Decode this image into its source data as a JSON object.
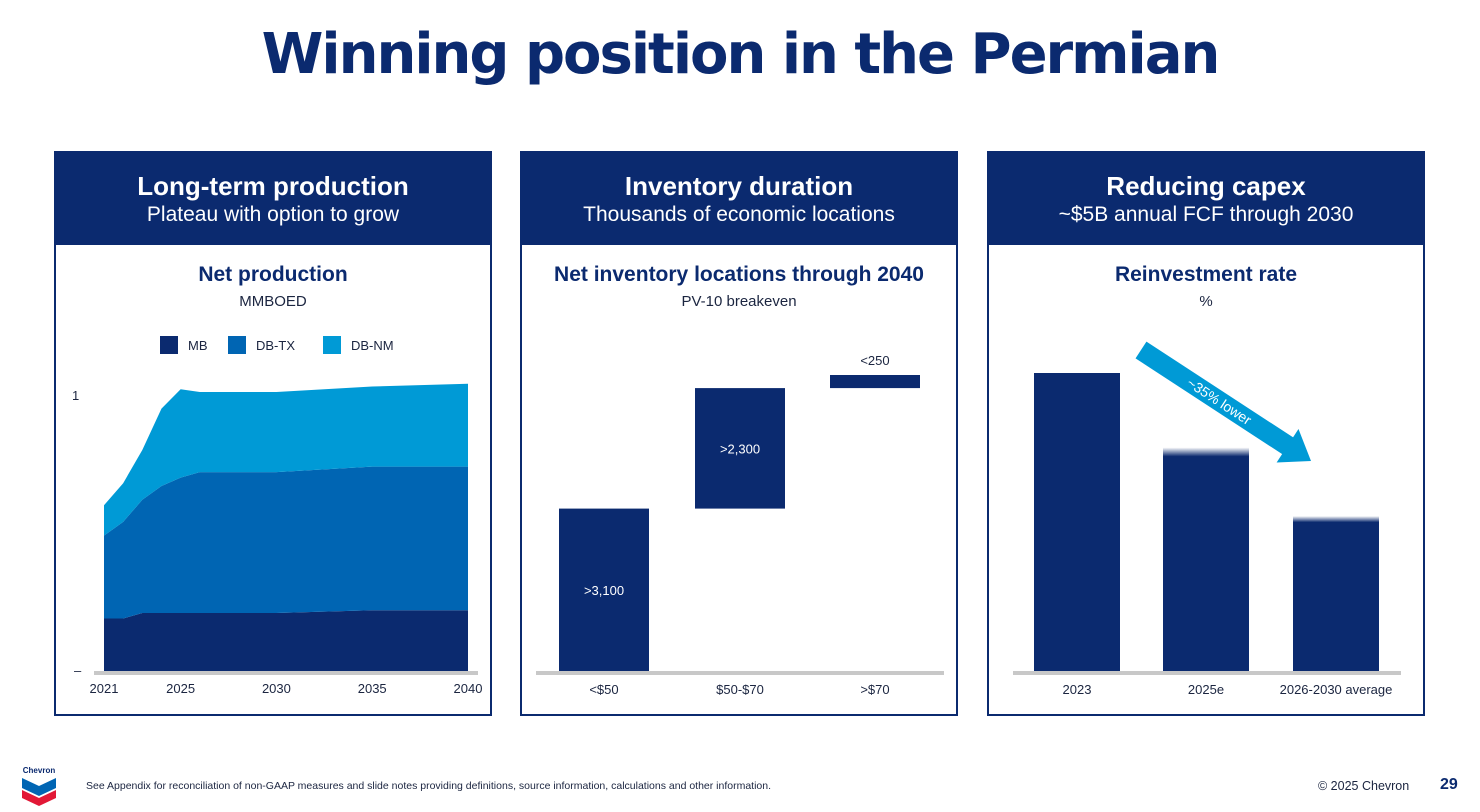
{
  "slide": {
    "title": "Winning position in the Permian",
    "footnote": "See Appendix for reconciliation of non-GAAP measures and slide notes providing definitions, source information, calculations and other information.",
    "copyright": "© 2025 Chevron",
    "page_number": "29",
    "logo_text": "Chevron"
  },
  "panels": [
    {
      "heading": "Long-term production",
      "subheading": "Plateau with option to grow",
      "chart_title": "Net production",
      "chart_subtitle": "MMBOED"
    },
    {
      "heading": "Inventory duration",
      "subheading": "Thousands of economic locations",
      "chart_title": "Net inventory locations through 2040",
      "chart_subtitle": "PV-10 breakeven"
    },
    {
      "heading": "Reducing capex",
      "subheading": "~$5B annual FCF through 2030",
      "chart_title": "Reinvestment rate",
      "chart_subtitle": "%"
    }
  ],
  "chart_data": [
    {
      "type": "area",
      "title": "Net production",
      "ylabel": "MMBOED",
      "x": [
        2021,
        2022,
        2023,
        2024,
        2025,
        2026,
        2030,
        2035,
        2040
      ],
      "series": [
        {
          "name": "MB",
          "values": [
            0.19,
            0.19,
            0.21,
            0.21,
            0.21,
            0.21,
            0.21,
            0.22,
            0.22
          ],
          "color": "#0b2a6f"
        },
        {
          "name": "DB-TX",
          "values": [
            0.3,
            0.35,
            0.41,
            0.46,
            0.49,
            0.51,
            0.51,
            0.52,
            0.52
          ],
          "color": "#0065b3"
        },
        {
          "name": "DB-NM",
          "values": [
            0.11,
            0.14,
            0.18,
            0.28,
            0.32,
            0.29,
            0.29,
            0.29,
            0.3
          ],
          "color": "#009ad6"
        }
      ],
      "xticks": [
        "2021",
        "2025",
        "2030",
        "2035",
        "2040"
      ],
      "yticks": [
        "1",
        "–"
      ],
      "ylim": [
        0,
        1.05
      ],
      "legend": "top"
    },
    {
      "type": "bar",
      "title": "Net inventory locations through 2040",
      "subtitle": "PV-10 breakeven",
      "categories": [
        "<$50",
        "$50-$70",
        ">$70"
      ],
      "values": [
        3100,
        2300,
        250
      ],
      "labels": [
        ">3,100",
        ">2,300",
        "<250"
      ],
      "stacked_waterfall": true,
      "color": "#0b2a6f"
    },
    {
      "type": "bar",
      "title": "Reinvestment rate",
      "ylabel": "%",
      "categories": [
        "2023",
        "2025e",
        "2026-2030 average"
      ],
      "values": [
        100,
        75,
        52
      ],
      "annotation": "~35% lower",
      "color": "#0b2a6f",
      "arrow_color": "#009ad6"
    }
  ]
}
